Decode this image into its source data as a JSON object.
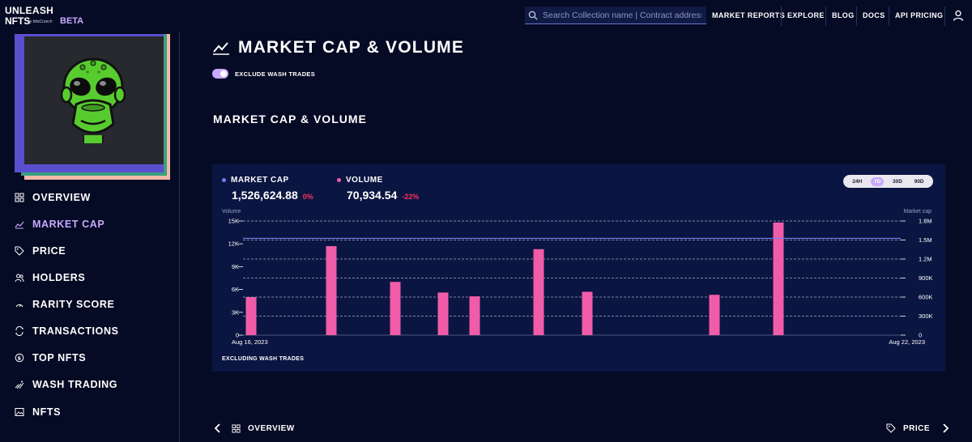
{
  "header": {
    "logo_line1": "UNLEASH",
    "logo_line2": "NFTS",
    "logo_by": "by bitsCrunch",
    "beta": "BETA",
    "search_placeholder": "Search Collection name | Contract address",
    "nav": [
      "MARKET REPORTS",
      "EXPLORE",
      "BLOG",
      "DOCS",
      "API PRICING"
    ]
  },
  "sidebar": {
    "items": [
      {
        "label": "OVERVIEW",
        "icon": "grid-icon",
        "active": false
      },
      {
        "label": "MARKET CAP",
        "icon": "chart-line-icon",
        "active": true
      },
      {
        "label": "PRICE",
        "icon": "tag-icon",
        "active": false
      },
      {
        "label": "HOLDERS",
        "icon": "users-icon",
        "active": false
      },
      {
        "label": "RARITY SCORE",
        "icon": "gauge-icon",
        "active": false
      },
      {
        "label": "TRANSACTIONS",
        "icon": "swap-icon",
        "active": false
      },
      {
        "label": "TOP NFTS",
        "icon": "coin-icon",
        "active": false
      },
      {
        "label": "WASH TRADING",
        "icon": "wash-icon",
        "active": false
      },
      {
        "label": "NFTS",
        "icon": "image-icon",
        "active": false
      }
    ]
  },
  "main": {
    "title": "MARKET CAP & VOLUME",
    "toggle_label": "EXCLUDE WASH TRADES",
    "section_title": "MARKET CAP & VOLUME",
    "legend": {
      "market_cap": {
        "label": "MARKET CAP",
        "value": "1,526,624.88",
        "change": "0%"
      },
      "volume": {
        "label": "VOLUME",
        "value": "70,934.54",
        "change": "-22%"
      }
    },
    "periods": [
      "24H",
      "7D",
      "30D",
      "90D"
    ],
    "active_period": "7D",
    "excluding_note": "EXCLUDING WASH TRADES"
  },
  "footer": {
    "prev_label": "OVERVIEW",
    "next_label": "PRICE"
  },
  "colors": {
    "background": "#050b24",
    "card": "#0b1541",
    "accent": "#c9a9ff",
    "volume": "#f05ca8",
    "market_cap": "#7b7cf0",
    "negative": "#ff2e5f"
  },
  "chart_data": {
    "type": "bar",
    "x_start_label": "Aug 16, 2023",
    "x_end_label": "Aug 22, 2023",
    "y_left_title": "Volume",
    "y_right_title": "Market cap",
    "y_left_ticks": [
      "0",
      "3K",
      "6K",
      "9K",
      "12K",
      "15K"
    ],
    "y_right_ticks": [
      "0",
      "300K",
      "600K",
      "900K",
      "1.2M",
      "1.5M",
      "1.8M"
    ],
    "ylim_left": [
      0,
      15000
    ],
    "ylim_right": [
      0,
      1800000
    ],
    "series": [
      {
        "name": "VOLUME",
        "type": "bar",
        "values": [
          5000,
          11700,
          7000,
          5600,
          5100,
          11300,
          5700,
          5300,
          14800
        ]
      },
      {
        "name": "MARKET CAP",
        "type": "line",
        "values": [
          1526624.88,
          1526624.88
        ]
      }
    ],
    "grid": true,
    "legend": "top-left"
  }
}
